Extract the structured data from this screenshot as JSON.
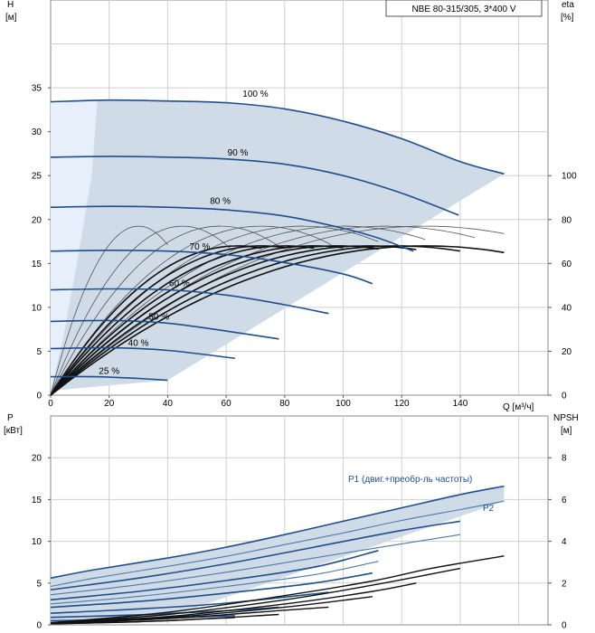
{
  "header": {
    "model": "NBE 80-315/305, 3*400 V"
  },
  "chart_data": [
    {
      "type": "line",
      "title": "NBE 80-315/305, 3*400 V",
      "ylabel": "H",
      "ylabel_unit": "[м]",
      "y2label": "eta",
      "y2label_unit": "[%]",
      "xlabel": "Q [м³/ч]",
      "xlim": [
        0,
        170
      ],
      "ylim": [
        0,
        45
      ],
      "y2lim": [
        0,
        180
      ],
      "x_ticks": [
        0,
        20,
        40,
        60,
        80,
        100,
        120,
        140
      ],
      "y_ticks": [
        0,
        5,
        10,
        15,
        20,
        25,
        30,
        35
      ],
      "y2_ticks": [
        0,
        20,
        40,
        60,
        80,
        100
      ],
      "grid": true,
      "operating_area": [
        [
          0,
          33.4
        ],
        [
          16,
          33.6
        ],
        [
          20,
          33.6
        ],
        [
          40,
          33.5
        ],
        [
          60,
          33.3
        ],
        [
          80,
          32.6
        ],
        [
          100,
          31.2
        ],
        [
          120,
          29.2
        ],
        [
          140,
          26.6
        ],
        [
          155,
          25.2
        ],
        [
          40,
          1.7
        ],
        [
          0,
          0.5
        ]
      ],
      "speed_curves": [
        {
          "label": "100 %",
          "label_at": [
            70,
            34.0
          ],
          "points": [
            [
              0,
              33.4
            ],
            [
              20,
              33.6
            ],
            [
              40,
              33.5
            ],
            [
              60,
              33.3
            ],
            [
              80,
              32.6
            ],
            [
              100,
              31.2
            ],
            [
              120,
              29.2
            ],
            [
              140,
              26.6
            ],
            [
              155,
              25.2
            ]
          ]
        },
        {
          "label": "90 %",
          "label_at": [
            64,
            27.3
          ],
          "points": [
            [
              0,
              27.1
            ],
            [
              20,
              27.2
            ],
            [
              40,
              27.1
            ],
            [
              60,
              26.9
            ],
            [
              80,
              26.3
            ],
            [
              100,
              25.0
            ],
            [
              120,
              23.0
            ],
            [
              139.5,
              20.5
            ]
          ]
        },
        {
          "label": "80 %",
          "label_at": [
            58,
            21.8
          ],
          "points": [
            [
              0,
              21.4
            ],
            [
              20,
              21.5
            ],
            [
              40,
              21.4
            ],
            [
              60,
              21.1
            ],
            [
              80,
              20.4
            ],
            [
              100,
              19.0
            ],
            [
              112,
              17.9
            ],
            [
              124,
              16.4
            ]
          ]
        },
        {
          "label": "70 %",
          "label_at": [
            51,
            16.6
          ],
          "points": [
            [
              0,
              16.4
            ],
            [
              20,
              16.5
            ],
            [
              40,
              16.4
            ],
            [
              60,
              16.0
            ],
            [
              80,
              15.1
            ],
            [
              100,
              13.8
            ],
            [
              110,
              12.7
            ]
          ]
        },
        {
          "label": "60 %",
          "label_at": [
            44,
            12.4
          ],
          "points": [
            [
              0,
              12.0
            ],
            [
              20,
              12.1
            ],
            [
              40,
              12.0
            ],
            [
              60,
              11.4
            ],
            [
              80,
              10.3
            ],
            [
              95,
              9.3
            ]
          ]
        },
        {
          "label": "50 %",
          "label_at": [
            37,
            8.6
          ],
          "points": [
            [
              0,
              8.4
            ],
            [
              20,
              8.5
            ],
            [
              40,
              8.2
            ],
            [
              60,
              7.3
            ],
            [
              78,
              6.4
            ]
          ]
        },
        {
          "label": "40 %",
          "label_at": [
            30,
            5.6
          ],
          "points": [
            [
              0,
              5.3
            ],
            [
              20,
              5.4
            ],
            [
              40,
              5.1
            ],
            [
              63,
              4.2
            ]
          ]
        },
        {
          "label": "25 %",
          "label_at": [
            20,
            2.4
          ],
          "points": [
            [
              0,
              2.1
            ],
            [
              15,
              2.1
            ],
            [
              30,
              1.9
            ],
            [
              40,
              1.7
            ]
          ]
        }
      ],
      "eta_curves": {
        "thin": [
          {
            "peak_q": 30,
            "end_q": 40
          },
          {
            "peak_q": 45,
            "end_q": 62
          },
          {
            "peak_q": 58,
            "end_q": 78
          },
          {
            "peak_q": 72,
            "end_q": 96
          },
          {
            "peak_q": 86,
            "end_q": 112
          },
          {
            "peak_q": 100,
            "end_q": 128
          },
          {
            "peak_q": 115,
            "end_q": 145
          },
          {
            "peak_q": 128,
            "end_q": 155
          }
        ],
        "thick": [
          {
            "peak_q": 64,
            "end_q": 72
          },
          {
            "peak_q": 72,
            "end_q": 80
          },
          {
            "peak_q": 80,
            "end_q": 90
          },
          {
            "peak_q": 90,
            "end_q": 100
          },
          {
            "peak_q": 98,
            "end_q": 112
          },
          {
            "peak_q": 108,
            "end_q": 125
          },
          {
            "peak_q": 118,
            "end_q": 140
          },
          {
            "peak_q": 128,
            "end_q": 155
          }
        ],
        "peak_eta": 77
      }
    },
    {
      "type": "line",
      "ylabel": "P",
      "ylabel_unit": "[кВт]",
      "y2label": "NPSH",
      "y2label_unit": "[м]",
      "xlim": [
        0,
        170
      ],
      "ylim": [
        0,
        25
      ],
      "y2lim": [
        0,
        10
      ],
      "y_ticks": [
        0,
        5,
        10,
        15,
        20
      ],
      "y2_ticks": [
        0,
        2,
        4,
        6,
        8
      ],
      "grid": true,
      "p1_label": "P1 (двиг.+преобр-ль частоты)",
      "p2_label": "P2",
      "power_area": [
        [
          0,
          5.6
        ],
        [
          15,
          6.6
        ],
        [
          40,
          8.0
        ],
        [
          60,
          9.3
        ],
        [
          80,
          10.8
        ],
        [
          100,
          12.4
        ],
        [
          120,
          14.0
        ],
        [
          140,
          15.6
        ],
        [
          155,
          16.6
        ],
        [
          155,
          14.8
        ],
        [
          40,
          0.9
        ],
        [
          0,
          0.2
        ]
      ],
      "p1_curves": [
        {
          "points": [
            [
              0,
              5.6
            ],
            [
              15,
              6.6
            ],
            [
              40,
              8.0
            ],
            [
              60,
              9.3
            ],
            [
              80,
              10.8
            ],
            [
              100,
              12.4
            ],
            [
              120,
              14.0
            ],
            [
              140,
              15.6
            ],
            [
              155,
              16.6
            ]
          ]
        },
        {
          "points": [
            [
              0,
              4.2
            ],
            [
              30,
              5.6
            ],
            [
              60,
              7.3
            ],
            [
              90,
              9.3
            ],
            [
              120,
              11.3
            ],
            [
              140,
              12.4
            ]
          ]
        },
        {
          "points": [
            [
              0,
              3.0
            ],
            [
              30,
              4.0
            ],
            [
              60,
              5.3
            ],
            [
              90,
              6.9
            ],
            [
              112,
              8.9
            ]
          ]
        },
        {
          "points": [
            [
              0,
              2.1
            ],
            [
              30,
              2.8
            ],
            [
              60,
              3.8
            ],
            [
              90,
              5.0
            ],
            [
              110,
              6.2
            ]
          ]
        },
        {
          "points": [
            [
              0,
              1.4
            ],
            [
              30,
              1.9
            ],
            [
              60,
              2.6
            ],
            [
              95,
              3.9
            ]
          ]
        },
        {
          "points": [
            [
              0,
              0.9
            ],
            [
              30,
              1.2
            ],
            [
              60,
              1.7
            ],
            [
              78,
              2.1
            ]
          ]
        },
        {
          "points": [
            [
              0,
              0.5
            ],
            [
              30,
              0.7
            ],
            [
              63,
              1.1
            ]
          ]
        }
      ],
      "p2_curves": [
        {
          "points": [
            [
              0,
              4.6
            ],
            [
              15,
              5.6
            ],
            [
              40,
              7.0
            ],
            [
              60,
              8.2
            ],
            [
              80,
              9.6
            ],
            [
              100,
              11.0
            ],
            [
              120,
              12.5
            ],
            [
              140,
              13.8
            ],
            [
              155,
              14.8
            ]
          ]
        },
        {
          "points": [
            [
              0,
              3.6
            ],
            [
              30,
              4.8
            ],
            [
              60,
              6.3
            ],
            [
              90,
              8.0
            ],
            [
              120,
              9.7
            ],
            [
              140,
              10.8
            ]
          ]
        },
        {
          "points": [
            [
              0,
              2.5
            ],
            [
              30,
              3.4
            ],
            [
              60,
              4.6
            ],
            [
              90,
              6.0
            ],
            [
              112,
              7.6
            ]
          ]
        }
      ],
      "npsh_curves": [
        {
          "points": [
            [
              0,
              0.1
            ],
            [
              40,
              0.6
            ],
            [
              80,
              1.4
            ],
            [
              110,
              2.1
            ],
            [
              130,
              2.7
            ],
            [
              155,
              3.3
            ]
          ]
        },
        {
          "points": [
            [
              0,
              0.1
            ],
            [
              40,
              0.5
            ],
            [
              80,
              1.2
            ],
            [
              110,
              1.9
            ],
            [
              140,
              2.7
            ]
          ]
        },
        {
          "points": [
            [
              0,
              0.1
            ],
            [
              40,
              0.4
            ],
            [
              80,
              1.0
            ],
            [
              110,
              1.6
            ],
            [
              125,
              2.0
            ]
          ]
        },
        {
          "points": [
            [
              0,
              0.1
            ],
            [
              40,
              0.35
            ],
            [
              80,
              0.85
            ],
            [
              110,
              1.35
            ]
          ]
        },
        {
          "points": [
            [
              0,
              0.05
            ],
            [
              40,
              0.3
            ],
            [
              80,
              0.7
            ],
            [
              95,
              0.85
            ]
          ]
        },
        {
          "points": [
            [
              0,
              0.05
            ],
            [
              40,
              0.2
            ],
            [
              78,
              0.5
            ]
          ]
        },
        {
          "points": [
            [
              0,
              0.05
            ],
            [
              30,
              0.15
            ],
            [
              63,
              0.35
            ]
          ]
        }
      ]
    }
  ]
}
